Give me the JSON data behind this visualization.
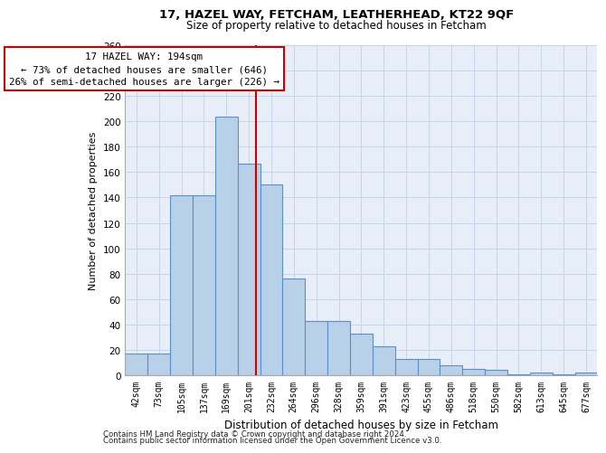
{
  "title1": "17, HAZEL WAY, FETCHAM, LEATHERHEAD, KT22 9QF",
  "title2": "Size of property relative to detached houses in Fetcham",
  "xlabel": "Distribution of detached houses by size in Fetcham",
  "ylabel": "Number of detached properties",
  "bin_labels": [
    "42sqm",
    "73sqm",
    "105sqm",
    "137sqm",
    "169sqm",
    "201sqm",
    "232sqm",
    "264sqm",
    "296sqm",
    "328sqm",
    "359sqm",
    "391sqm",
    "423sqm",
    "455sqm",
    "486sqm",
    "518sqm",
    "550sqm",
    "582sqm",
    "613sqm",
    "645sqm",
    "677sqm"
  ],
  "bar_values": [
    17,
    17,
    142,
    142,
    204,
    167,
    150,
    76,
    43,
    43,
    33,
    23,
    13,
    13,
    8,
    5,
    4,
    1,
    2,
    1,
    2
  ],
  "bar_color": "#b8d0e8",
  "bar_edge_color": "#5b8fc9",
  "grid_color": "#c8d4e8",
  "vline_color": "#cc0000",
  "annotation_line1": "17 HAZEL WAY: 194sqm",
  "annotation_line2": "← 73% of detached houses are smaller (646)",
  "annotation_line3": "26% of semi-detached houses are larger (226) →",
  "annotation_box_color": "white",
  "annotation_box_edge": "#cc0000",
  "footer1": "Contains HM Land Registry data © Crown copyright and database right 2024.",
  "footer2": "Contains public sector information licensed under the Open Government Licence v3.0.",
  "ylim": [
    0,
    260
  ],
  "yticks": [
    0,
    20,
    40,
    60,
    80,
    100,
    120,
    140,
    160,
    180,
    200,
    220,
    240,
    260
  ],
  "vline_pos": 5.3,
  "bg_color": "#e8eef8"
}
